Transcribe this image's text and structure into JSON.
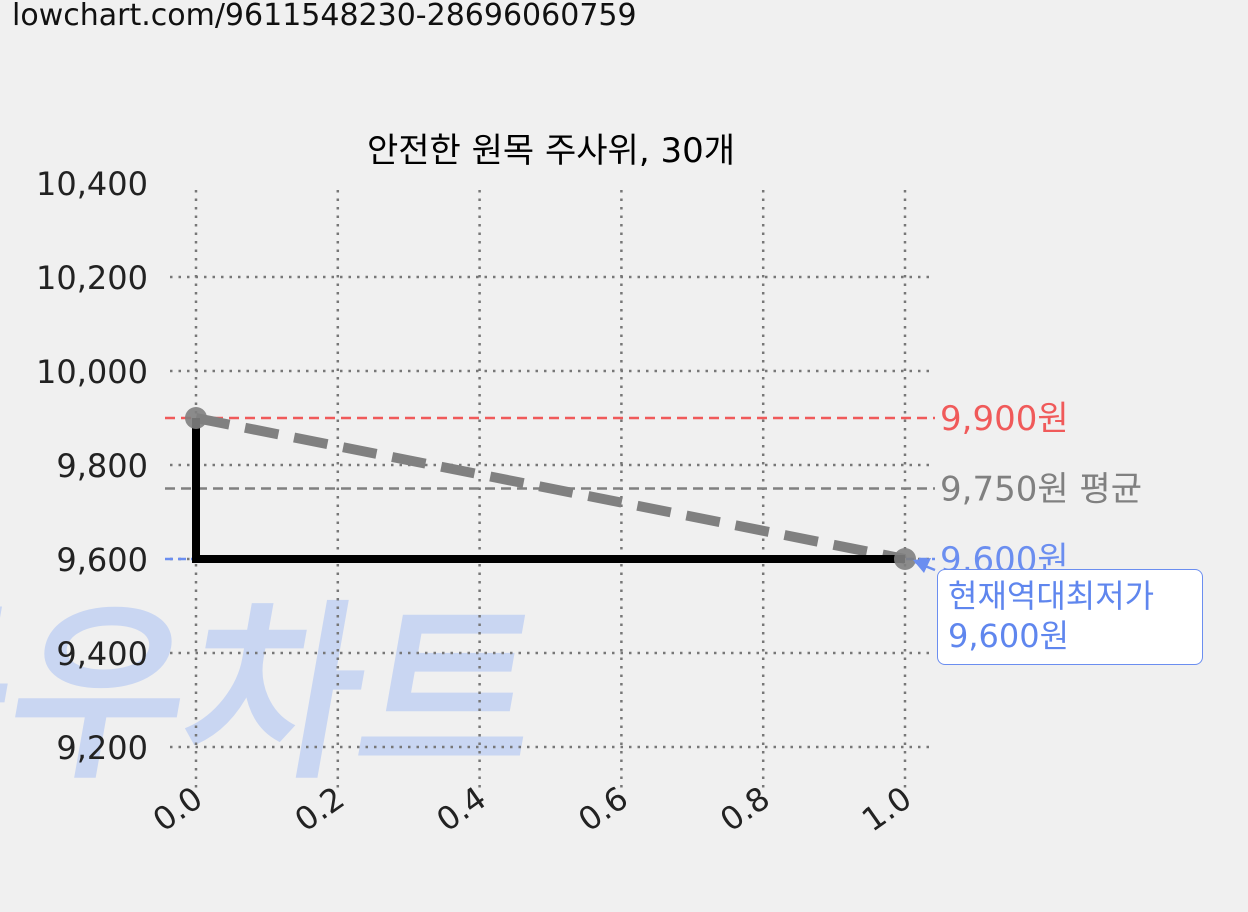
{
  "url": "lowchart.com/9611548230-28696060759",
  "watermark": "득우차트",
  "colors": {
    "background": "#f0f0f0",
    "line": "#000000",
    "trend": "#808080",
    "max": "#f05a5a",
    "avg": "#808080",
    "min": "#6b8ef0",
    "watermark": "#c9d6f2"
  },
  "chart_data": {
    "type": "line",
    "title": "안전한 원목 주사위, 30개",
    "x": [
      0.0,
      0.0,
      1.0
    ],
    "y": [
      9900,
      9600,
      9600
    ],
    "xlim": [
      0.0,
      1.0
    ],
    "ylim": [
      9200,
      10400
    ],
    "xticks": [
      0.0,
      0.2,
      0.4,
      0.6,
      0.8,
      1.0
    ],
    "xtick_labels": [
      "0.0",
      "0.2",
      "0.4",
      "0.6",
      "0.8",
      "1.0"
    ],
    "yticks": [
      9200,
      9400,
      9600,
      9800,
      10000,
      10200,
      10400
    ],
    "ytick_labels": [
      "9,200",
      "9,400",
      "9,600",
      "9,800",
      "10,000",
      "10,200",
      "10,400"
    ],
    "grid": true,
    "trend_line": {
      "x": [
        0.0,
        1.0
      ],
      "y": [
        9900,
        9600
      ]
    },
    "reference_lines": [
      {
        "kind": "max",
        "value": 9900,
        "label": "9,900원"
      },
      {
        "kind": "avg",
        "value": 9750,
        "label": "9,750원 평균"
      },
      {
        "kind": "min",
        "value": 9600,
        "label": "9,600원"
      }
    ],
    "annotation": {
      "line1": "현재역대최저가",
      "line2": "9,600원",
      "x": 1.0,
      "y": 9600
    }
  }
}
